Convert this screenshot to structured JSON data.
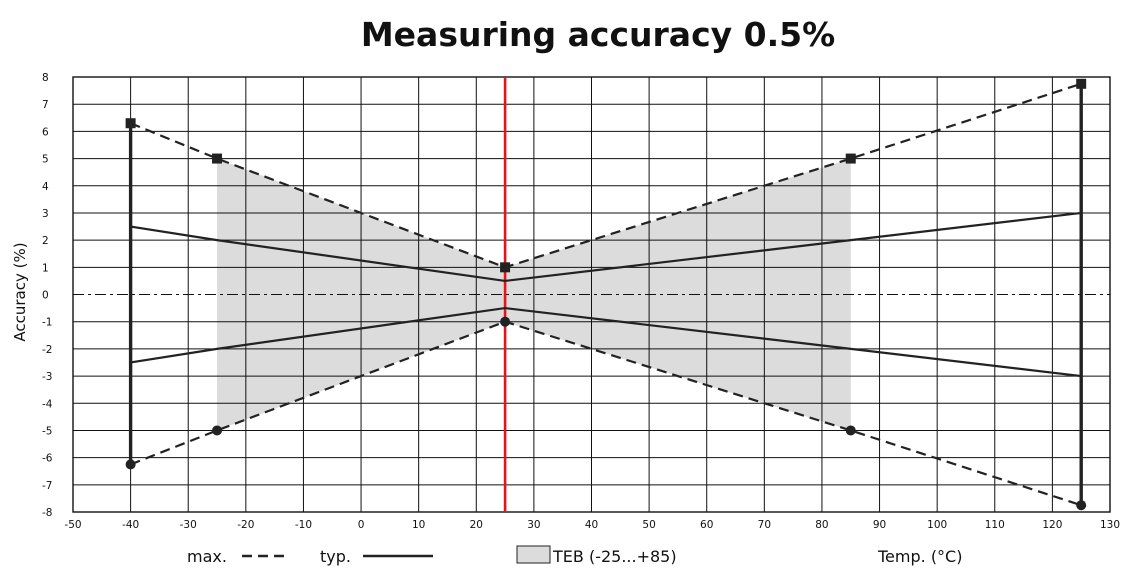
{
  "chart_data": {
    "type": "line",
    "title": "Measuring accuracy 0.5%",
    "xlabel": "Temp. (°C)",
    "ylabel": "Accuracy (%)",
    "xlim": [
      -50,
      130
    ],
    "ylim": [
      -8,
      8
    ],
    "x_ticks": [
      -50,
      -40,
      -30,
      -20,
      -10,
      0,
      10,
      20,
      30,
      40,
      50,
      60,
      70,
      80,
      90,
      100,
      110,
      120,
      130
    ],
    "x_tick_labels": [
      "-50",
      "-40",
      "-30",
      "-20",
      "-10",
      "0",
      "10",
      "20",
      "30",
      "40",
      "50",
      "60",
      "70",
      "80",
      "90",
      "100",
      "110",
      "120",
      "130"
    ],
    "y_ticks": [
      -8,
      -7,
      -6,
      -5,
      -4,
      -3,
      -2,
      -1,
      0,
      1,
      2,
      3,
      4,
      5,
      6,
      7,
      8
    ],
    "y_tick_labels": [
      "-8",
      "-7",
      "-6",
      "-5",
      "-4",
      "-3",
      "-2",
      "-1",
      "0",
      "1",
      "2",
      "3",
      "4",
      "5",
      "6",
      "7",
      "8"
    ],
    "grid": true,
    "reference_line_x": 25,
    "series": [
      {
        "style": "dashed",
        "marker": "square",
        "x": [
          -40,
          -25,
          25,
          85,
          125
        ],
        "y": [
          6.3,
          5,
          1,
          5,
          7.75
        ]
      },
      {
        "style": "dashed",
        "marker": "circle",
        "x": [
          -40,
          -25,
          25,
          85,
          125
        ],
        "y": [
          -6.25,
          -5,
          -1,
          -5,
          -7.75
        ]
      },
      {
        "style": "solid",
        "x": [
          -40,
          -25,
          25,
          85,
          125
        ],
        "y": [
          2.5,
          2,
          0.5,
          2,
          3
        ]
      },
      {
        "style": "solid",
        "x": [
          -40,
          -25,
          25,
          85,
          125
        ],
        "y": [
          -2.5,
          -2,
          -0.5,
          -2,
          -3
        ]
      }
    ],
    "range_bars": [
      {
        "x": -40,
        "y_max": 6.3,
        "y_min": -6.25
      },
      {
        "x": 125,
        "y_max": 7.75,
        "y_min": -7.75
      }
    ],
    "shaded_band": {
      "x": [
        -25,
        25,
        85
      ],
      "upper": [
        5,
        1,
        5
      ],
      "lower": [
        -5,
        -1,
        -5
      ]
    },
    "legend": {
      "max_label": "max.",
      "typ_label": "typ.",
      "band_label": "TEB (-25...+85)"
    },
    "colors": {
      "reference_line": "#e3141b",
      "band": "#dcdcdc",
      "line": "#222222",
      "grid": "#111111"
    }
  }
}
